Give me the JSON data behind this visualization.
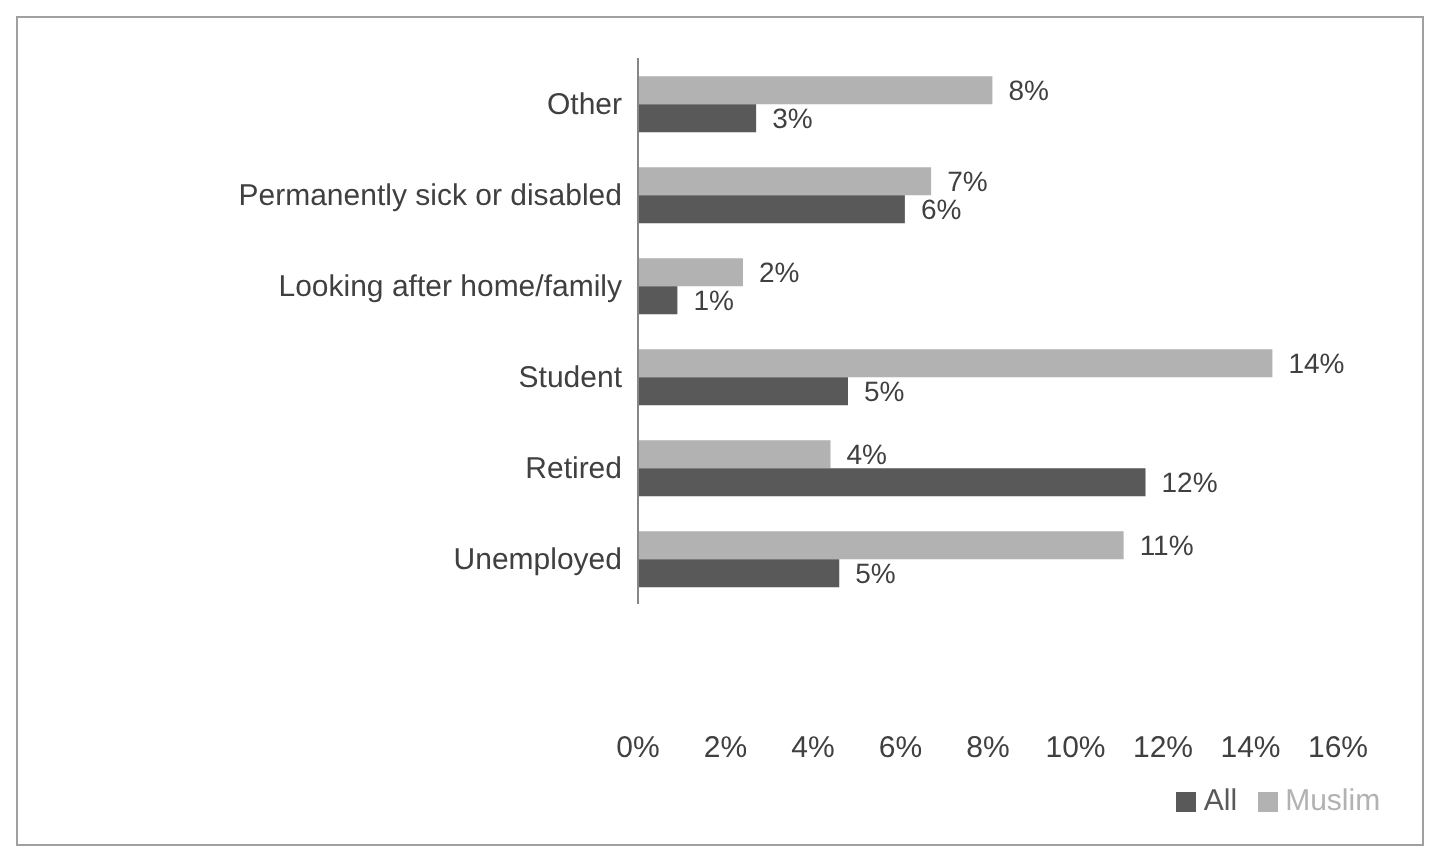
{
  "chart_data": {
    "type": "bar",
    "orientation": "horizontal",
    "categories": [
      "Other",
      "Permanently sick or disabled",
      "Looking after home/family",
      "Student",
      "Retired",
      "Unemployed"
    ],
    "series": [
      {
        "name": "Muslim",
        "color": "#b2b2b2",
        "values": [
          8.1,
          6.7,
          2.4,
          14.5,
          4.4,
          11.1
        ],
        "value_labels": [
          "8%",
          "7%",
          "2%",
          "14%",
          "4%",
          "11%"
        ]
      },
      {
        "name": "All",
        "color": "#595959",
        "values": [
          2.7,
          6.1,
          0.9,
          4.8,
          11.6,
          4.6
        ],
        "value_labels": [
          "3%",
          "6%",
          "1%",
          "5%",
          "12%",
          "5%"
        ]
      }
    ],
    "xlim": [
      0,
      16
    ],
    "xticks": [
      {
        "value": 0,
        "label": "0%"
      },
      {
        "value": 2,
        "label": "2%"
      },
      {
        "value": 4,
        "label": "4%"
      },
      {
        "value": 6,
        "label": "6%"
      },
      {
        "value": 8,
        "label": "8%"
      },
      {
        "value": 10,
        "label": "10%"
      },
      {
        "value": 12,
        "label": "12%"
      },
      {
        "value": 14,
        "label": "14%"
      },
      {
        "value": 16,
        "label": "16%"
      }
    ],
    "grid": false,
    "legend": "bottom"
  }
}
